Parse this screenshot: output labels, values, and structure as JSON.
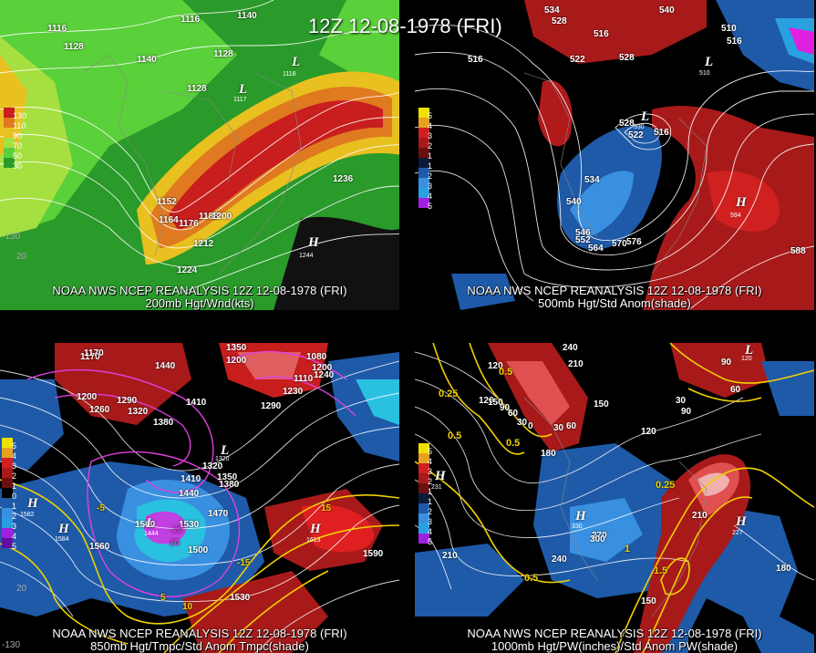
{
  "title": "12Z 12-08-1978 (FRI)",
  "colors": {
    "background": "#000000",
    "contour": "#ffffff",
    "pos_anom": "#c81e1e",
    "neg_anom": "#1e64c8",
    "yellow": "#f0e000",
    "magenta": "#e040e0"
  },
  "panels": {
    "p200": {
      "caption1": "NOAA NWS NCEP REANALYSIS 12Z 12-08-1978 (FRI)",
      "caption2": "200mb Hgt/Wnd(kts)",
      "colorbar": [
        "130",
        "110",
        "90",
        "70",
        "50",
        "30"
      ],
      "labels": [
        "1116",
        "1140",
        "1116",
        "1128",
        "1140",
        "1128",
        "1128",
        "1152",
        "1164",
        "1176",
        "1188",
        "1200",
        "1212",
        "1224",
        "1236",
        "1244",
        "1117",
        "1118"
      ],
      "lon": [
        "-130",
        "20"
      ]
    },
    "p500": {
      "caption1": "NOAA NWS NCEP REANALYSIS 12Z 12-08-1978 (FRI)",
      "caption2": "500mb Hgt/Std Anom(shade)",
      "colorbar": [
        "5",
        "4",
        "3",
        "2",
        "1",
        "1",
        "2",
        "3",
        "4",
        "5"
      ],
      "labels": [
        "534",
        "528",
        "540",
        "516",
        "522",
        "528",
        "516",
        "510",
        "516",
        "528",
        "534",
        "522",
        "516",
        "540",
        "546",
        "552",
        "564",
        "570",
        "576",
        "588",
        "534"
      ]
    },
    "p850": {
      "caption1": "NOAA NWS NCEP REANALYSIS 12Z 12-08-1978 (FRI)",
      "caption2": "850mb Hgt/Tmpc/Std Anom Tmpc(shade)",
      "colorbar": [
        "5",
        "4",
        "3",
        "2",
        "1",
        "0",
        "1",
        "2",
        "3",
        "4",
        "5"
      ],
      "labels": [
        "1170",
        "1440",
        "1350",
        "1290",
        "1200",
        "1260",
        "1320",
        "1380",
        "1410",
        "1230",
        "1170",
        "1200",
        "1290",
        "1320",
        "1350",
        "1380",
        "1410",
        "1440",
        "1470",
        "1500",
        "1530",
        "1560",
        "1560",
        "1590",
        "1530",
        "1410",
        "1080",
        "1110",
        "1200",
        "1240"
      ],
      "temps": [
        "-20",
        "-15",
        "-5",
        "5",
        "10",
        "15",
        "20"
      ],
      "lon": [
        "-130",
        "20"
      ]
    },
    "p1000": {
      "caption1": "NOAA NWS NCEP REANALYSIS 12Z 12-08-1978 (FRI)",
      "caption2": "1000mb Hgt/PW(inches)/Std Anom PW(shade)",
      "colorbar": [
        "5",
        "4",
        "3",
        "2",
        "1",
        "1",
        "2",
        "3",
        "4",
        "5"
      ],
      "labels": [
        "240",
        "210",
        "150",
        "120",
        "90",
        "60",
        "30",
        "0",
        "30",
        "60",
        "90",
        "120",
        "150",
        "180",
        "210",
        "240",
        "270",
        "300",
        "210",
        "180",
        "150",
        "120",
        "60",
        "30",
        "90"
      ],
      "pw": [
        "0.25",
        "0.5",
        "0.5",
        "0.25",
        "1",
        "0.5",
        "1.5",
        "0.5"
      ]
    }
  },
  "markers": {
    "p200": [
      {
        "t": "L",
        "sub": "1118"
      },
      {
        "t": "L",
        "sub": "1117"
      },
      {
        "t": "H",
        "sub": "1244"
      }
    ],
    "p500": [
      {
        "t": "L",
        "sub": "530"
      },
      {
        "t": "H",
        "sub": "594"
      },
      {
        "t": "L",
        "sub": "510"
      }
    ],
    "p850": [
      {
        "t": "H",
        "sub": "1582"
      },
      {
        "t": "H",
        "sub": "1584"
      },
      {
        "t": "L",
        "sub": "1320"
      },
      {
        "t": "H",
        "sub": "1613"
      },
      {
        "t": "L",
        "sub": "1444"
      }
    ],
    "p1000": [
      {
        "t": "H",
        "sub": "231"
      },
      {
        "t": "H",
        "sub": "227"
      },
      {
        "t": "H",
        "sub": "330"
      },
      {
        "t": "L",
        "sub": "120"
      }
    ]
  }
}
